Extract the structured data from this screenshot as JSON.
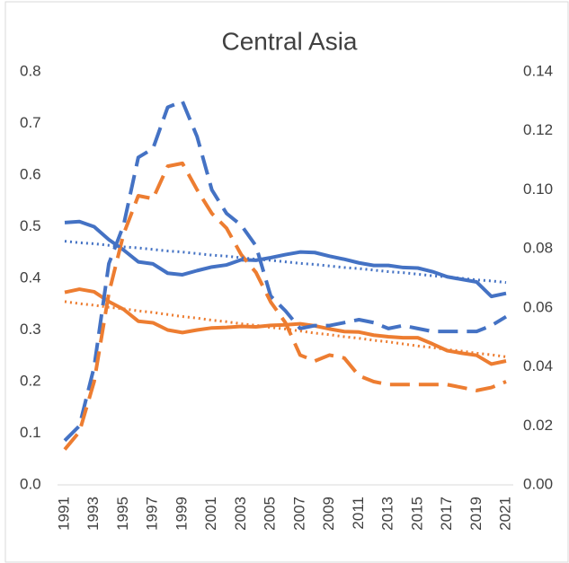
{
  "chart_data": {
    "type": "line",
    "title": "Central Asia",
    "x": [
      1991,
      1992,
      1993,
      1994,
      1995,
      1996,
      1997,
      1998,
      1999,
      2000,
      2001,
      2002,
      2003,
      2004,
      2005,
      2006,
      2007,
      2008,
      2009,
      2010,
      2011,
      2012,
      2013,
      2014,
      2015,
      2016,
      2017,
      2018,
      2019,
      2020,
      2021
    ],
    "xlim": [
      1991,
      2021
    ],
    "xticks": [
      1991,
      1993,
      1995,
      1997,
      1999,
      2001,
      2003,
      2005,
      2007,
      2009,
      2011,
      2013,
      2015,
      2017,
      2019,
      2021
    ],
    "ylim": [
      0,
      0.8
    ],
    "yticks": [
      {
        "value": 0,
        "label": "0.0"
      },
      0.1,
      0.2,
      0.3,
      0.4,
      0.5,
      0.6,
      0.7,
      0.8
    ],
    "y2lim": [
      0,
      0.14
    ],
    "y2ticks": [
      {
        "value": 0,
        "label": "0.00"
      },
      0.02,
      0.04,
      0.06,
      0.08,
      {
        "value": 0.1,
        "label": "0.10"
      },
      0.12,
      0.14
    ],
    "grid": false,
    "series": [
      {
        "color": "#4472c4",
        "dash": "solid",
        "axis": "y",
        "values": [
          0.508,
          0.51,
          0.5,
          0.475,
          0.455,
          0.432,
          0.428,
          0.41,
          0.407,
          0.415,
          0.422,
          0.426,
          0.436,
          0.435,
          0.44,
          0.446,
          0.451,
          0.45,
          0.443,
          0.437,
          0.43,
          0.425,
          0.425,
          0.421,
          0.42,
          0.413,
          0.403,
          0.398,
          0.393,
          0.365,
          0.371
        ]
      },
      {
        "color": "#ed7d31",
        "dash": "solid",
        "axis": "y",
        "values": [
          0.373,
          0.379,
          0.374,
          0.355,
          0.34,
          0.317,
          0.314,
          0.3,
          0.295,
          0.3,
          0.304,
          0.305,
          0.307,
          0.306,
          0.309,
          0.31,
          0.312,
          0.308,
          0.302,
          0.297,
          0.296,
          0.29,
          0.287,
          0.285,
          0.285,
          0.273,
          0.26,
          0.255,
          0.251,
          0.234,
          0.24
        ]
      },
      {
        "color": "#4472c4",
        "dash": "dashed",
        "axis": "y2",
        "values": [
          0.015,
          0.02,
          0.04,
          0.075,
          0.088,
          0.111,
          0.114,
          0.128,
          0.13,
          0.118,
          0.1,
          0.092,
          0.088,
          0.081,
          0.064,
          0.059,
          0.053,
          0.054,
          0.054,
          0.055,
          0.056,
          0.055,
          0.053,
          0.054,
          0.053,
          0.052,
          0.052,
          0.052,
          0.052,
          0.054,
          0.057
        ]
      },
      {
        "color": "#ed7d31",
        "dash": "dashed",
        "axis": "y2",
        "values": [
          0.012,
          0.018,
          0.035,
          0.065,
          0.085,
          0.098,
          0.097,
          0.108,
          0.109,
          0.1,
          0.092,
          0.087,
          0.078,
          0.072,
          0.062,
          0.055,
          0.044,
          0.042,
          0.044,
          0.043,
          0.037,
          0.035,
          0.034,
          0.034,
          0.034,
          0.034,
          0.034,
          0.033,
          0.032,
          0.033,
          0.035
        ]
      },
      {
        "color": "#4472c4",
        "dash": "dotted",
        "axis": "y",
        "values": [
          0.472,
          0.469,
          0.467,
          0.464,
          0.461,
          0.459,
          0.456,
          0.453,
          0.451,
          0.448,
          0.445,
          0.443,
          0.44,
          0.437,
          0.435,
          0.432,
          0.429,
          0.427,
          0.424,
          0.421,
          0.419,
          0.416,
          0.413,
          0.411,
          0.408,
          0.405,
          0.403,
          0.4,
          0.397,
          0.395,
          0.392
        ]
      },
      {
        "color": "#ed7d31",
        "dash": "dotted",
        "axis": "y",
        "values": [
          0.355,
          0.351,
          0.348,
          0.344,
          0.341,
          0.337,
          0.334,
          0.33,
          0.326,
          0.323,
          0.319,
          0.316,
          0.312,
          0.309,
          0.305,
          0.302,
          0.298,
          0.294,
          0.291,
          0.287,
          0.284,
          0.28,
          0.277,
          0.273,
          0.269,
          0.266,
          0.262,
          0.259,
          0.255,
          0.252,
          0.248
        ]
      }
    ]
  }
}
